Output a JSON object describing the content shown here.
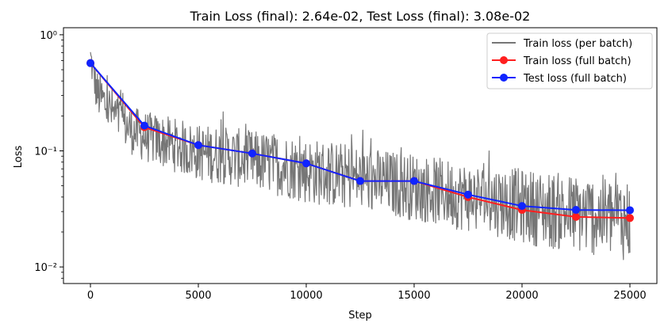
{
  "chart_data": {
    "type": "line",
    "title": "Train Loss (final): 2.64e-02, Test Loss (final): 3.08e-02",
    "xlabel": "Step",
    "ylabel": "Loss",
    "xlim": [
      -1250,
      26250
    ],
    "ylim": [
      0.0072,
      1.15
    ],
    "yscale": "log",
    "grid": false,
    "legend_position": "top-right",
    "x_ticks": [
      0,
      5000,
      10000,
      15000,
      20000,
      25000
    ],
    "x_tick_labels": [
      "0",
      "5000",
      "10000",
      "15000",
      "20000",
      "25000"
    ],
    "y_ticks": [
      1,
      0.1,
      0.01
    ],
    "y_tick_labels": [
      "10⁰",
      "10⁻¹",
      "10⁻²"
    ],
    "series": [
      {
        "name": "Train loss (per batch)",
        "style": "band",
        "color": "#767676",
        "x": [
          0,
          300,
          700,
          1200,
          2000,
          2500,
          3500,
          5000,
          6500,
          7500,
          9000,
          10000,
          11500,
          12500,
          14000,
          15000,
          16500,
          17500,
          19000,
          20000,
          21500,
          22500,
          24000,
          25000
        ],
        "upper": [
          0.9,
          0.5,
          0.42,
          0.32,
          0.24,
          0.22,
          0.2,
          0.17,
          0.16,
          0.15,
          0.14,
          0.13,
          0.12,
          0.11,
          0.1,
          0.095,
          0.085,
          0.08,
          0.075,
          0.07,
          0.066,
          0.063,
          0.062,
          0.06
        ],
        "lower": [
          0.45,
          0.2,
          0.15,
          0.12,
          0.09,
          0.08,
          0.07,
          0.055,
          0.05,
          0.045,
          0.04,
          0.035,
          0.032,
          0.03,
          0.027,
          0.025,
          0.022,
          0.02,
          0.018,
          0.016,
          0.014,
          0.013,
          0.012,
          0.011
        ]
      },
      {
        "name": "Train loss (full batch)",
        "style": "line-markers",
        "color": "#ff1f1f",
        "x": [
          0,
          2500,
          5000,
          7500,
          10000,
          12500,
          15000,
          17500,
          20000,
          22500,
          25000
        ],
        "y": [
          0.57,
          0.16,
          0.112,
          0.095,
          0.078,
          0.055,
          0.055,
          0.04,
          0.031,
          0.027,
          0.0264
        ]
      },
      {
        "name": "Test loss (full batch)",
        "style": "line-markers",
        "color": "#1024ff",
        "x": [
          0,
          2500,
          5000,
          7500,
          10000,
          12500,
          15000,
          17500,
          20000,
          22500,
          25000
        ],
        "y": [
          0.57,
          0.165,
          0.112,
          0.095,
          0.078,
          0.055,
          0.055,
          0.042,
          0.0335,
          0.031,
          0.0308
        ]
      }
    ]
  }
}
